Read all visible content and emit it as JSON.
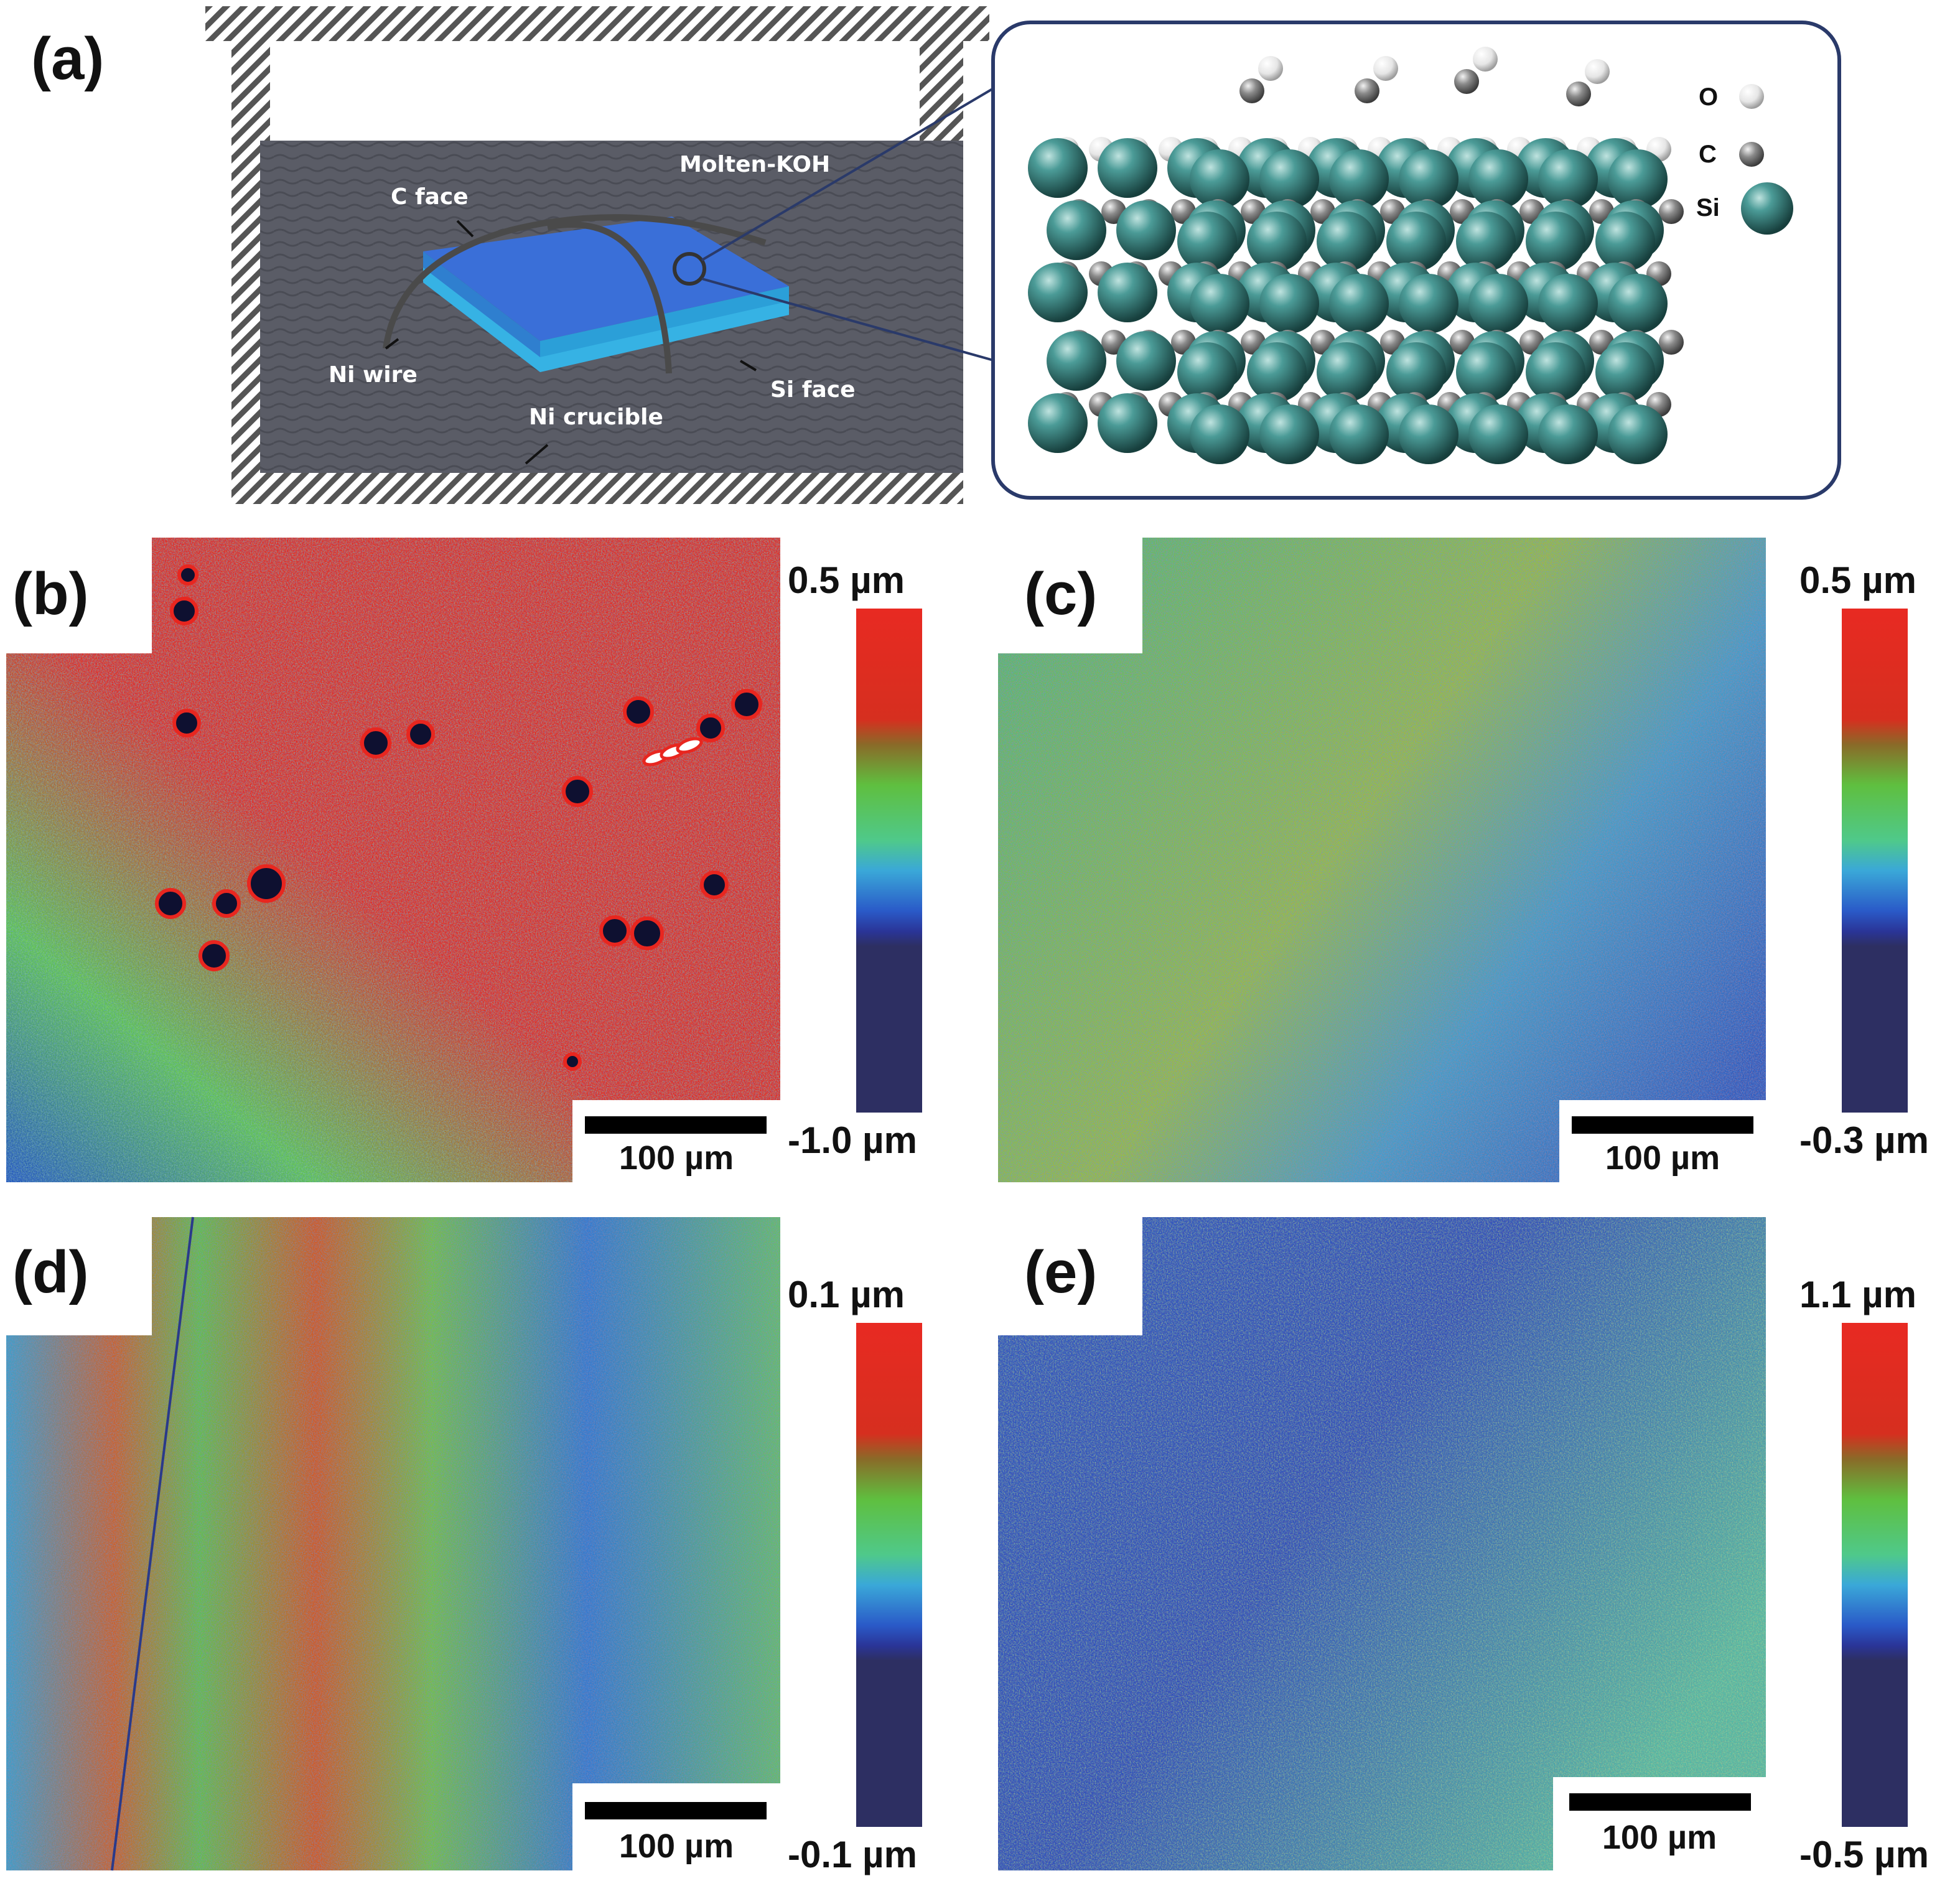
{
  "panel_a": {
    "label": "(a)",
    "labels": {
      "molten_koh": "Molten-KOH",
      "c_face": "C face",
      "ni_wire": "Ni wire",
      "si_face": "Si face",
      "ni_crucible": "Ni crucible"
    },
    "legend": [
      {
        "label": "O",
        "color": "#f2f2f2"
      },
      {
        "label": "C",
        "color": "#8a8a8a"
      },
      {
        "label": "Si",
        "color": "#3f8c8a"
      }
    ]
  },
  "panels": [
    {
      "id": "b",
      "label": "(b)",
      "scale_max": "0.5 µm",
      "scale_min": "-1.0 µm",
      "scalebar": "100 µm"
    },
    {
      "id": "c",
      "label": "(c)",
      "scale_max": "0.5 µm",
      "scale_min": "-0.3 µm",
      "scalebar": "100 µm"
    },
    {
      "id": "d",
      "label": "(d)",
      "scale_max": "0.1 µm",
      "scale_min": "-0.1 µm",
      "scalebar": "100 µm"
    },
    {
      "id": "e",
      "label": "(e)",
      "scale_max": "1.1 µm",
      "scale_min": "-0.5 µm",
      "scalebar": "100 µm"
    }
  ],
  "colors": {
    "map_red": "#e8261f",
    "map_green": "#5fc24a",
    "map_blue": "#1e4fbf",
    "map_navy": "#2b2d63",
    "si_atom": "#3f8c8a",
    "koh_bath": "#5a5c66",
    "wafer_top": "#3a6fd8",
    "wafer_side": "#2b9fd8"
  }
}
